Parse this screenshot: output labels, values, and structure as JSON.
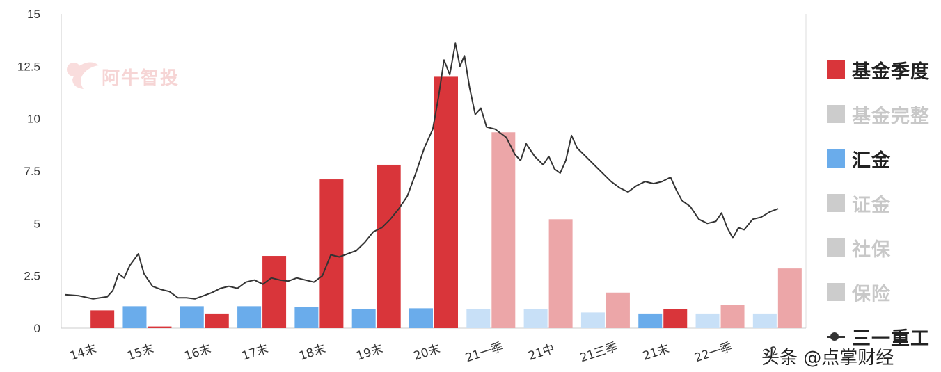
{
  "colors": {
    "fund_quarter": "#d9353a",
    "fund_quarter_light": "#eca6a8",
    "huijin": "#6aaceb",
    "huijin_light": "#c8e0f7",
    "inactive": "#cccccc",
    "line": "#333333",
    "axis": "#cccccc"
  },
  "legend": [
    {
      "label": "基金季度",
      "color": "#d9353a",
      "active": true
    },
    {
      "label": "基金完整",
      "color": "#cccccc",
      "active": false
    },
    {
      "label": "汇金",
      "color": "#6aaceb",
      "active": true
    },
    {
      "label": "证金",
      "color": "#cccccc",
      "active": false
    },
    {
      "label": "社保",
      "color": "#cccccc",
      "active": false
    },
    {
      "label": "保险",
      "color": "#cccccc",
      "active": false
    },
    {
      "label": "三一重工",
      "type": "line",
      "active": true
    }
  ],
  "watermark": {
    "text": "阿牛智投"
  },
  "credit": {
    "text": "头条 @点掌财经"
  },
  "chart_data": {
    "type": "bar",
    "categories": [
      "14末",
      "15末",
      "16末",
      "17末",
      "18末",
      "19末",
      "20末",
      "21一季",
      "21中",
      "21三季",
      "21末",
      "22一季",
      "22"
    ],
    "ylim": [
      0,
      15
    ],
    "yticks": [
      "0",
      "2.5",
      "5",
      "7.5",
      "10",
      "12.5",
      "15"
    ],
    "ytick_values": [
      0,
      2.5,
      5,
      7.5,
      10,
      12.5,
      15
    ],
    "series": [
      {
        "name": "汇金",
        "values": [
          0,
          1.05,
          1.05,
          1.05,
          1.0,
          0.9,
          0.95,
          0.9,
          0.9,
          0.75,
          0.7,
          0.7,
          0.7
        ]
      },
      {
        "name": "基金季度",
        "values": [
          0.85,
          0.08,
          0.7,
          3.45,
          7.1,
          7.8,
          12.0,
          9.35,
          5.2,
          1.7,
          0.9,
          1.1,
          2.85
        ]
      },
      {
        "name": "三一重工",
        "type": "line",
        "points": [
          [
            0.0,
            1.6
          ],
          [
            0.25,
            1.55
          ],
          [
            0.5,
            1.4
          ],
          [
            0.75,
            1.5
          ],
          [
            0.85,
            1.8
          ],
          [
            0.95,
            2.6
          ],
          [
            1.05,
            2.4
          ],
          [
            1.15,
            3.0
          ],
          [
            1.3,
            3.55
          ],
          [
            1.4,
            2.6
          ],
          [
            1.55,
            2.0
          ],
          [
            1.7,
            1.85
          ],
          [
            1.85,
            1.75
          ],
          [
            2.0,
            1.45
          ],
          [
            2.15,
            1.45
          ],
          [
            2.3,
            1.4
          ],
          [
            2.45,
            1.55
          ],
          [
            2.6,
            1.7
          ],
          [
            2.75,
            1.9
          ],
          [
            2.9,
            2.0
          ],
          [
            3.05,
            1.9
          ],
          [
            3.2,
            2.2
          ],
          [
            3.35,
            2.3
          ],
          [
            3.5,
            2.1
          ],
          [
            3.65,
            2.4
          ],
          [
            3.8,
            2.3
          ],
          [
            3.95,
            2.25
          ],
          [
            4.1,
            2.4
          ],
          [
            4.25,
            2.3
          ],
          [
            4.4,
            2.2
          ],
          [
            4.55,
            2.5
          ],
          [
            4.7,
            3.5
          ],
          [
            4.85,
            3.4
          ],
          [
            5.0,
            3.55
          ],
          [
            5.15,
            3.7
          ],
          [
            5.3,
            4.1
          ],
          [
            5.45,
            4.6
          ],
          [
            5.6,
            4.8
          ],
          [
            5.75,
            5.2
          ],
          [
            5.9,
            5.7
          ],
          [
            6.05,
            6.3
          ],
          [
            6.2,
            7.4
          ],
          [
            6.35,
            8.6
          ],
          [
            6.5,
            9.5
          ],
          [
            6.6,
            11.0
          ],
          [
            6.7,
            12.8
          ],
          [
            6.8,
            12.1
          ],
          [
            6.9,
            13.6
          ],
          [
            6.98,
            12.5
          ],
          [
            7.06,
            13.0
          ],
          [
            7.15,
            11.5
          ],
          [
            7.25,
            10.2
          ],
          [
            7.35,
            10.5
          ],
          [
            7.45,
            9.6
          ],
          [
            7.6,
            9.5
          ],
          [
            7.8,
            9.1
          ],
          [
            7.95,
            8.3
          ],
          [
            8.05,
            8.0
          ],
          [
            8.15,
            8.8
          ],
          [
            8.3,
            8.2
          ],
          [
            8.45,
            7.8
          ],
          [
            8.55,
            8.2
          ],
          [
            8.65,
            7.6
          ],
          [
            8.75,
            7.4
          ],
          [
            8.85,
            8.0
          ],
          [
            8.95,
            9.2
          ],
          [
            9.05,
            8.6
          ],
          [
            9.2,
            8.2
          ],
          [
            9.35,
            7.8
          ],
          [
            9.5,
            7.4
          ],
          [
            9.65,
            7.0
          ],
          [
            9.8,
            6.7
          ],
          [
            9.95,
            6.5
          ],
          [
            10.1,
            6.8
          ],
          [
            10.25,
            7.0
          ],
          [
            10.4,
            6.9
          ],
          [
            10.55,
            7.0
          ],
          [
            10.7,
            7.2
          ],
          [
            10.8,
            6.6
          ],
          [
            10.9,
            6.1
          ],
          [
            11.05,
            5.8
          ],
          [
            11.2,
            5.2
          ],
          [
            11.35,
            5.0
          ],
          [
            11.5,
            5.1
          ],
          [
            11.6,
            5.5
          ],
          [
            11.7,
            4.8
          ],
          [
            11.8,
            4.3
          ],
          [
            11.9,
            4.8
          ],
          [
            12.0,
            4.7
          ],
          [
            12.15,
            5.2
          ],
          [
            12.3,
            5.3
          ],
          [
            12.45,
            5.55
          ],
          [
            12.6,
            5.7
          ]
        ]
      }
    ]
  }
}
